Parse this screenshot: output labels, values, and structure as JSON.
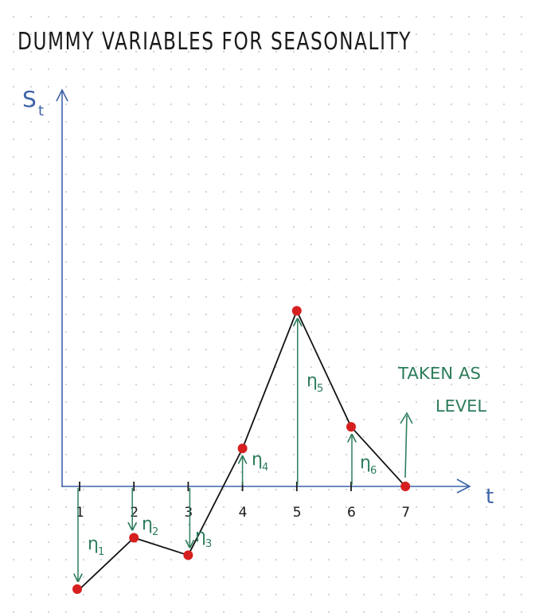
{
  "title": "DUMMY VARIABLES FOR SEASONALITY",
  "axes": {
    "y_label": "S",
    "y_label_sub": "t",
    "x_label": "t"
  },
  "ticks": [
    "1",
    "2",
    "3",
    "4",
    "5",
    "6",
    "7"
  ],
  "seasonal_labels": [
    {
      "label": "η",
      "sub": "1"
    },
    {
      "label": "η",
      "sub": "2"
    },
    {
      "label": "η",
      "sub": "3"
    },
    {
      "label": "η",
      "sub": "4"
    },
    {
      "label": "η",
      "sub": "5"
    },
    {
      "label": "η",
      "sub": "6"
    }
  ],
  "note": {
    "line1": "TAKEN AS",
    "line2": "LEVEL"
  },
  "colors": {
    "axis": "#3d63a8",
    "curve": "#111111",
    "arrow": "#2e7d5b",
    "point": "#d61f1f",
    "title": "#1a1a1a"
  },
  "series_values": [
    -1.0,
    -0.5,
    -0.67,
    0.37,
    1.71,
    0.58,
    0.0
  ]
}
